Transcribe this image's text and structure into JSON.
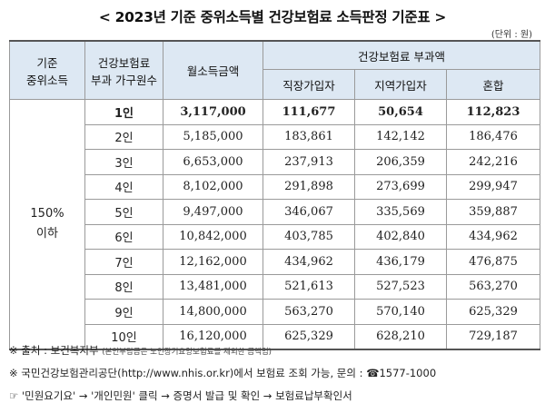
{
  "title": "< 2023년 기준 중위소득별 건강보험료 소득판정 기준표 >",
  "unit": "(단위 : 원)",
  "table": {
    "headers": {
      "col1": [
        "기준",
        "중위소득"
      ],
      "col2": [
        "건강보험료",
        "부과 가구원수"
      ],
      "col3": "월소득금액",
      "group": "건강보험료 부과액",
      "sub": [
        "직장가입자",
        "지역가입자",
        "혼합"
      ]
    },
    "group_label": [
      "150%",
      "이하"
    ],
    "rows": [
      {
        "hh": "1인",
        "income": "3,117,000",
        "work": "111,677",
        "region": "50,654",
        "mixed": "112,823"
      },
      {
        "hh": "2인",
        "income": "5,185,000",
        "work": "183,861",
        "region": "142,142",
        "mixed": "186,476"
      },
      {
        "hh": "3인",
        "income": "6,653,000",
        "work": "237,913",
        "region": "206,359",
        "mixed": "242,216"
      },
      {
        "hh": "4인",
        "income": "8,102,000",
        "work": "291,898",
        "region": "273,699",
        "mixed": "299,947"
      },
      {
        "hh": "5인",
        "income": "9,497,000",
        "work": "346,067",
        "region": "335,569",
        "mixed": "359,887"
      },
      {
        "hh": "6인",
        "income": "10,842,000",
        "work": "403,785",
        "region": "402,840",
        "mixed": "434,962"
      },
      {
        "hh": "7인",
        "income": "12,162,000",
        "work": "434,962",
        "region": "436,179",
        "mixed": "476,875"
      },
      {
        "hh": "8인",
        "income": "13,481,000",
        "work": "521,613",
        "region": "527,523",
        "mixed": "563,270"
      },
      {
        "hh": "9인",
        "income": "14,800,000",
        "work": "563,270",
        "region": "570,140",
        "mixed": "625,329"
      },
      {
        "hh": "10인",
        "income": "16,120,000",
        "work": "625,329",
        "region": "628,210",
        "mixed": "729,187"
      }
    ]
  },
  "notes": {
    "source_label": "※ 출처 : 보건복지부",
    "source_small": "(본인부담금은 노인장기요양보험료를 제외한 금액임)",
    "nhis": "※ 국민건강보험관리공단(http://www.nhis.or.kr)에서 보험료 조회 가능, 문의 : ☎1577-1000",
    "path": "☞ '민원요기요' → '개인민원' 클릭 → 증명서 발급 및 확인 → 보험료납부확인서"
  }
}
